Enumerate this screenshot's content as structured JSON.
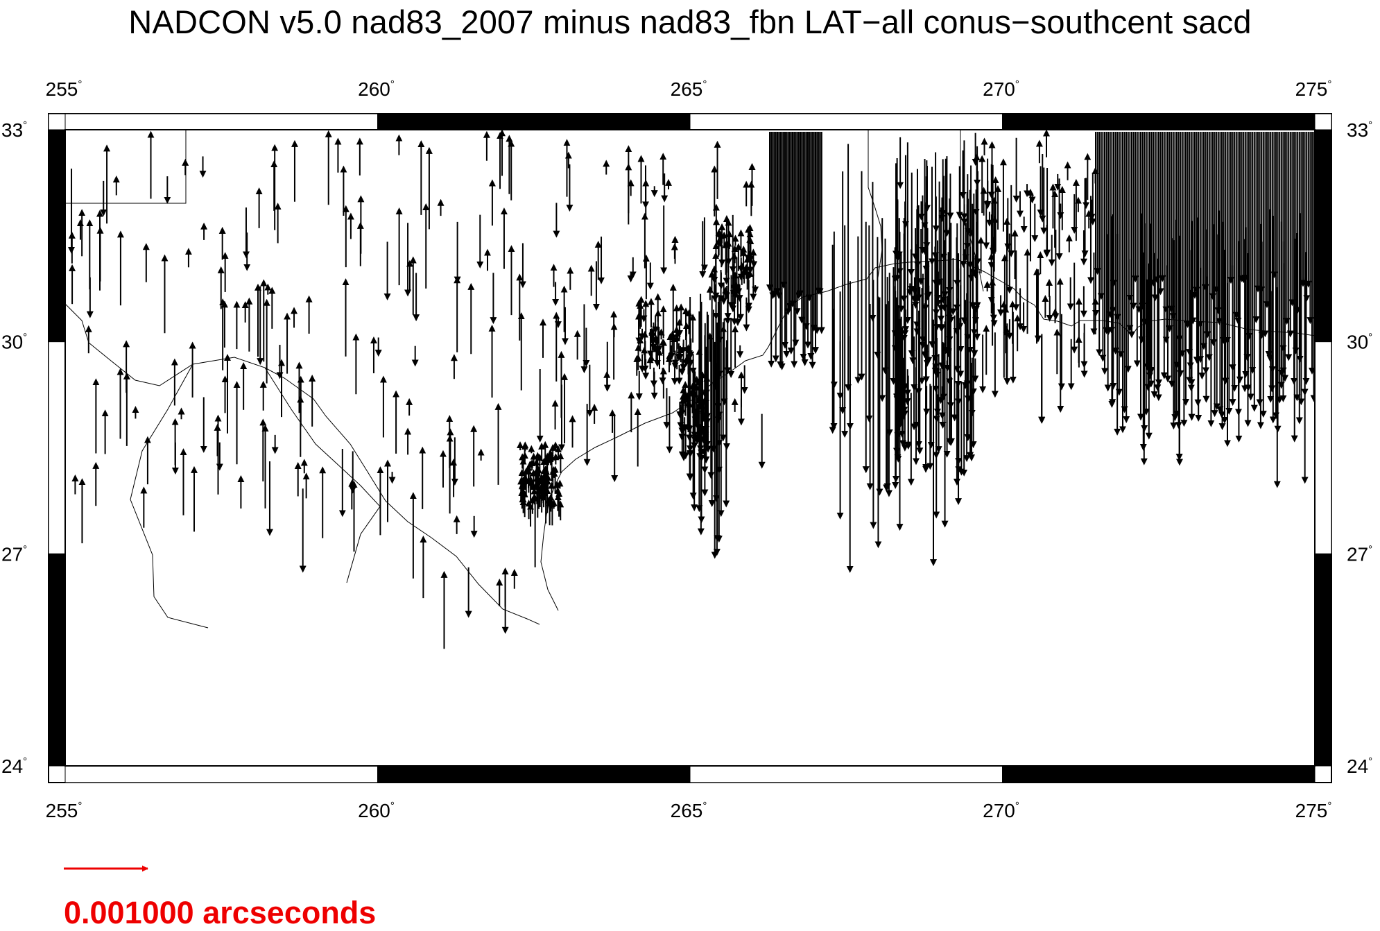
{
  "title": "NADCON v5.0 nad83_2007 minus nad83_fbn LAT−all  conus−southcent sacd",
  "map": {
    "lon_range": [
      255,
      275
    ],
    "lat_range": [
      24,
      33
    ],
    "lon_ticks": [
      "255",
      "260",
      "265",
      "270",
      "275"
    ],
    "lat_ticks": [
      "33",
      "30",
      "27",
      "24"
    ],
    "degree_symbol": "°",
    "vector_color": "#000000",
    "boundary_color": "#000000"
  },
  "scale": {
    "label": "0.001000 arcseconds",
    "color": "#ee0000"
  },
  "icons": {
    "vector": "arrow-icon",
    "scale": "scale-arrow-icon"
  }
}
